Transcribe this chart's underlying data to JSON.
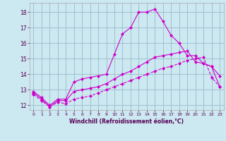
{
  "xlabel": "Windchill (Refroidissement éolien,°C)",
  "bg_color": "#cce8f0",
  "line_color": "#cc00cc",
  "grid_color": "#99bbcc",
  "xlim": [
    -0.5,
    23.5
  ],
  "ylim": [
    11.7,
    18.6
  ],
  "xticks": [
    0,
    1,
    2,
    3,
    4,
    5,
    6,
    7,
    8,
    9,
    10,
    11,
    12,
    13,
    14,
    15,
    16,
    17,
    18,
    19,
    20,
    21,
    22,
    23
  ],
  "yticks": [
    12,
    13,
    14,
    15,
    16,
    17,
    18
  ],
  "series1_x": [
    0,
    1,
    2,
    3,
    4,
    5,
    6,
    7,
    8,
    9,
    10,
    11,
    12,
    13,
    14,
    15,
    16,
    17,
    18,
    19,
    20,
    21,
    22,
    23
  ],
  "series1_y": [
    12.9,
    12.5,
    12.0,
    12.4,
    12.4,
    13.5,
    13.7,
    13.8,
    13.9,
    14.0,
    15.3,
    16.6,
    17.0,
    18.0,
    18.0,
    18.2,
    17.4,
    16.5,
    16.0,
    15.2,
    15.2,
    14.7,
    14.5,
    13.9
  ],
  "series2_x": [
    0,
    1,
    2,
    3,
    4,
    5,
    6,
    7,
    8,
    9,
    10,
    11,
    12,
    13,
    14,
    15,
    16,
    17,
    18,
    19,
    20,
    21,
    22,
    23
  ],
  "series2_y": [
    12.8,
    12.4,
    11.9,
    12.3,
    12.3,
    12.9,
    13.0,
    13.1,
    13.2,
    13.4,
    13.7,
    14.0,
    14.2,
    14.5,
    14.8,
    15.1,
    15.2,
    15.3,
    15.4,
    15.5,
    14.8,
    14.7,
    14.5,
    13.2
  ],
  "series3_x": [
    0,
    1,
    2,
    3,
    4,
    5,
    6,
    7,
    8,
    9,
    10,
    11,
    12,
    13,
    14,
    15,
    16,
    17,
    18,
    19,
    20,
    21,
    22,
    23
  ],
  "series3_y": [
    12.7,
    12.3,
    11.9,
    12.2,
    12.1,
    12.4,
    12.5,
    12.6,
    12.8,
    13.0,
    13.2,
    13.4,
    13.6,
    13.8,
    14.0,
    14.2,
    14.4,
    14.5,
    14.7,
    14.9,
    15.0,
    15.1,
    13.8,
    13.2
  ]
}
